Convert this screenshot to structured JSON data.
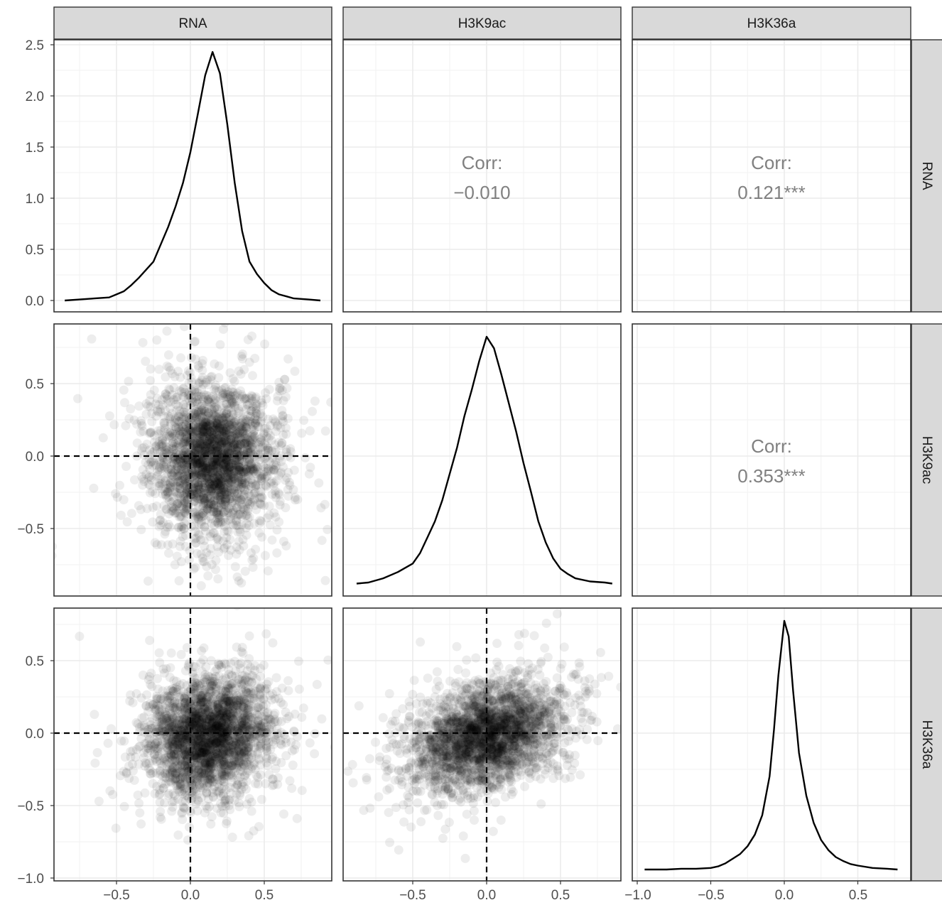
{
  "chart_data": {
    "type": "scatter",
    "variables": [
      "RNA",
      "H3K9ac",
      "H3K36a"
    ],
    "column_strips": [
      "RNA",
      "H3K9ac",
      "H3K36a"
    ],
    "row_strips": [
      "RNA",
      "H3K9ac",
      "H3K36a"
    ],
    "x_ticks": {
      "col0": [
        "−0.5",
        "0.0",
        "0.5"
      ],
      "col1": [
        "−0.5",
        "0.0",
        "0.5"
      ],
      "col2": [
        "−1.0",
        "−0.5",
        "0.0",
        "0.5"
      ]
    },
    "y_ticks": {
      "row0": [
        "0.0",
        "0.5",
        "1.0",
        "1.5",
        "2.0",
        "2.5"
      ],
      "row1": [
        "−0.5",
        "0.0",
        "0.5"
      ],
      "row2": [
        "−1.0",
        "−0.5",
        "0.0",
        "0.5"
      ]
    },
    "correlations": [
      {
        "pair": [
          "RNA",
          "H3K9ac"
        ],
        "label": "Corr:",
        "value": "−0.010"
      },
      {
        "pair": [
          "RNA",
          "H3K36a"
        ],
        "label": "Corr:",
        "value": "0.121***"
      },
      {
        "pair": [
          "H3K9ac",
          "H3K36a"
        ],
        "label": "Corr:",
        "value": "0.353***"
      }
    ],
    "densities": {
      "RNA": {
        "x": [
          -0.85,
          -0.75,
          -0.65,
          -0.55,
          -0.5,
          -0.45,
          -0.4,
          -0.35,
          -0.3,
          -0.25,
          -0.2,
          -0.15,
          -0.1,
          -0.05,
          0.0,
          0.05,
          0.1,
          0.15,
          0.2,
          0.25,
          0.3,
          0.35,
          0.4,
          0.45,
          0.5,
          0.55,
          0.6,
          0.65,
          0.7,
          0.8,
          0.88
        ],
        "y": [
          0.0,
          0.01,
          0.02,
          0.03,
          0.06,
          0.09,
          0.15,
          0.22,
          0.3,
          0.38,
          0.55,
          0.72,
          0.92,
          1.15,
          1.45,
          1.82,
          2.2,
          2.43,
          2.22,
          1.72,
          1.15,
          0.68,
          0.38,
          0.26,
          0.17,
          0.1,
          0.06,
          0.04,
          0.02,
          0.01,
          0.0
        ]
      },
      "H3K9ac": {
        "x": [
          -0.88,
          -0.8,
          -0.7,
          -0.6,
          -0.5,
          -0.45,
          -0.4,
          -0.35,
          -0.3,
          -0.25,
          -0.2,
          -0.15,
          -0.1,
          -0.05,
          0.0,
          0.05,
          0.1,
          0.15,
          0.2,
          0.25,
          0.3,
          0.35,
          0.4,
          0.45,
          0.5,
          0.55,
          0.6,
          0.7,
          0.8,
          0.85
        ],
        "y": [
          0.01,
          0.02,
          0.06,
          0.12,
          0.2,
          0.3,
          0.45,
          0.6,
          0.8,
          1.05,
          1.3,
          1.6,
          1.85,
          2.12,
          2.35,
          2.24,
          1.99,
          1.72,
          1.45,
          1.15,
          0.88,
          0.6,
          0.4,
          0.25,
          0.15,
          0.1,
          0.06,
          0.03,
          0.02,
          0.01
        ]
      },
      "H3K36a": {
        "x": [
          -0.95,
          -0.8,
          -0.7,
          -0.6,
          -0.5,
          -0.45,
          -0.4,
          -0.35,
          -0.3,
          -0.25,
          -0.2,
          -0.15,
          -0.1,
          -0.07,
          -0.04,
          0.0,
          0.03,
          0.06,
          0.1,
          0.15,
          0.2,
          0.25,
          0.3,
          0.35,
          0.4,
          0.45,
          0.5,
          0.6,
          0.7,
          0.77
        ],
        "y": [
          0.0,
          0.0,
          0.01,
          0.01,
          0.02,
          0.04,
          0.08,
          0.14,
          0.2,
          0.3,
          0.45,
          0.7,
          1.2,
          1.8,
          2.5,
          3.2,
          3.0,
          2.3,
          1.5,
          0.95,
          0.6,
          0.38,
          0.25,
          0.16,
          0.11,
          0.07,
          0.05,
          0.02,
          0.01,
          0.0
        ]
      }
    },
    "scatter_pairs": [
      {
        "x": "RNA",
        "y": "H3K9ac",
        "x_center": 0.15,
        "y_center": -0.02,
        "x_sd": 0.2,
        "y_sd": 0.25,
        "r": -0.01
      },
      {
        "x": "RNA",
        "y": "H3K36a",
        "x_center": 0.12,
        "y_center": -0.02,
        "x_sd": 0.2,
        "y_sd": 0.2,
        "r": 0.121
      },
      {
        "x": "H3K9ac",
        "y": "H3K36a",
        "x_center": 0.0,
        "y_center": -0.02,
        "x_sd": 0.25,
        "y_sd": 0.18,
        "r": 0.353
      }
    ],
    "reference_lines": {
      "x": 0,
      "y": 0,
      "style": "dashed"
    },
    "grid": true
  }
}
